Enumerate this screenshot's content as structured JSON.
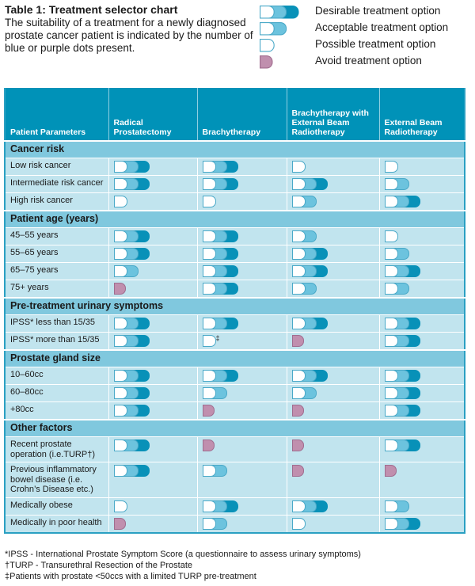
{
  "title": "Table 1: Treatment selector chart",
  "subtitle": "The suitability of a treatment for a newly diagnosed prostate cancer patient is indicated by the number of blue or purple dots present.",
  "legend": [
    {
      "level": 3,
      "label": "Desirable treatment option"
    },
    {
      "level": 2,
      "label": "Acceptable treatment option"
    },
    {
      "level": 1,
      "label": "Possible treatment option"
    },
    {
      "level": 0,
      "label": "Avoid treatment option"
    }
  ],
  "colors": {
    "header": "#0092b8",
    "section": "#80c8de",
    "body": "#c1e4ee",
    "dot_light": "#6cc3de",
    "dot_dark": "#0891b8",
    "avoid": "#c08fae"
  },
  "columns": [
    "Patient Parameters",
    "Radical Prostatectomy",
    "Brachytherapy",
    "Brachytherapy with External Beam Radiotherapy",
    "External Beam Radiotherapy"
  ],
  "sections": [
    {
      "name": "Cancer risk",
      "rows": [
        {
          "label": "Low risk cancer",
          "values": [
            3,
            3,
            1,
            1
          ]
        },
        {
          "label": "Intermediate risk cancer",
          "values": [
            3,
            3,
            3,
            2
          ]
        },
        {
          "label": "High risk cancer",
          "values": [
            1,
            1,
            2,
            3
          ]
        }
      ]
    },
    {
      "name": "Patient age (years)",
      "rows": [
        {
          "label": "45–55 years",
          "values": [
            3,
            3,
            2,
            1
          ]
        },
        {
          "label": "55–65 years",
          "values": [
            3,
            3,
            3,
            2
          ]
        },
        {
          "label": "65–75 years",
          "values": [
            2,
            3,
            3,
            3
          ]
        },
        {
          "label": "75+ years",
          "values": [
            0,
            3,
            2,
            2
          ]
        }
      ]
    },
    {
      "name": "Pre-treatment urinary symptoms",
      "rows": [
        {
          "label": "IPSS* less than 15/35",
          "values": [
            3,
            3,
            3,
            3
          ]
        },
        {
          "label": "IPSS* more than 15/35",
          "values": [
            3,
            1,
            0,
            3
          ],
          "marks": [
            "",
            "‡",
            "",
            ""
          ]
        }
      ]
    },
    {
      "name": "Prostate gland size",
      "rows": [
        {
          "label": "10–60cc",
          "values": [
            3,
            3,
            3,
            3
          ]
        },
        {
          "label": "60–80cc",
          "values": [
            3,
            2,
            2,
            3
          ]
        },
        {
          "label": "+80cc",
          "values": [
            3,
            0,
            0,
            3
          ]
        }
      ]
    },
    {
      "name": "Other factors",
      "rows": [
        {
          "label": "Recent prostate operation (i.e.TURP†)",
          "values": [
            3,
            0,
            0,
            3
          ]
        },
        {
          "label": "Previous inflammatory bowel disease (i.e. Crohn’s Disease etc.)",
          "values": [
            3,
            2,
            0,
            0
          ]
        },
        {
          "label": "Medically obese",
          "values": [
            1,
            3,
            3,
            2
          ]
        },
        {
          "label": "Medically in poor health",
          "values": [
            0,
            2,
            1,
            3
          ]
        }
      ]
    }
  ],
  "footnotes": [
    "*IPSS - International Prostate Symptom Score (a questionnaire to assess urinary symptoms)",
    "†TURP - Transurethral Resection of the Prostate",
    "‡Patients with prostate <50ccs with a limited TURP pre-treatment"
  ]
}
